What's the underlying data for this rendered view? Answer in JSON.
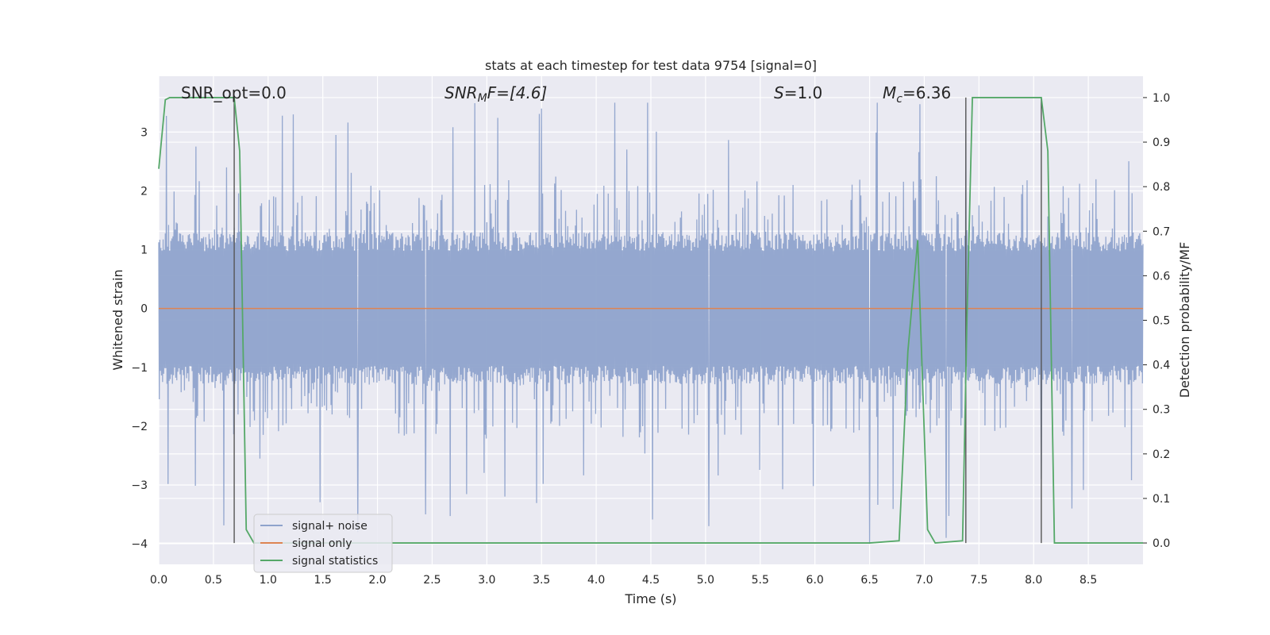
{
  "chart_data": {
    "type": "line",
    "title": "stats at each timestep for test data 9754 [signal=0]",
    "xlabel": "Time (s)",
    "ylabel": "Whitened strain",
    "y2label": "Detection probability/MF",
    "xlim": [
      0.0,
      9.0
    ],
    "ylim": [
      -4.35,
      3.95
    ],
    "y2lim": [
      -0.048,
      1.048
    ],
    "grid": true,
    "legend_position": "lower-left",
    "x_ticks": [
      "0.0",
      "0.5",
      "1.0",
      "1.5",
      "2.0",
      "2.5",
      "3.0",
      "3.5",
      "4.0",
      "4.5",
      "5.0",
      "5.5",
      "6.0",
      "6.5",
      "7.0",
      "7.5",
      "8.0",
      "8.5"
    ],
    "y_ticks": [
      "3",
      "2",
      "1",
      "0",
      "−1",
      "−2",
      "−3",
      "−4"
    ],
    "y2_ticks": [
      "1.0",
      "0.9",
      "0.8",
      "0.7",
      "0.6",
      "0.5",
      "0.4",
      "0.3",
      "0.2",
      "0.1",
      "0.0"
    ],
    "annotations": {
      "snr_opt": "SNR_opt=0.0",
      "snr_mf_main": "SNR",
      "snr_mf_sub": "M",
      "snr_mf_rest": "F=[4.6]",
      "s_italic": "S",
      "s_rest": "=1.0",
      "mc_main": "M",
      "mc_sub": "c",
      "mc_rest": "=6.36"
    },
    "vertical_markers_x": [
      0.69,
      7.38,
      8.07
    ],
    "series": [
      {
        "name": "signal+ noise",
        "color": "#8fa3cc",
        "envelope_approx": {
          "upper": 1.3,
          "lower": -1.3,
          "peak_max": 3.5,
          "trough_min": -4.0
        },
        "notable_spikes": [
          {
            "x": 0.62,
            "y": 2.4
          },
          {
            "x": 1.23,
            "y": 3.3
          },
          {
            "x": 1.82,
            "y": -3.8
          },
          {
            "x": 2.44,
            "y": -3.5
          },
          {
            "x": 3.5,
            "y": 3.4
          },
          {
            "x": 4.47,
            "y": 3.5
          },
          {
            "x": 5.03,
            "y": -3.7
          },
          {
            "x": 6.5,
            "y": -4.0
          },
          {
            "x": 7.2,
            "y": -3.9
          },
          {
            "x": 7.38,
            "y": 3.4
          },
          {
            "x": 8.07,
            "y": -2.9
          },
          {
            "x": 8.35,
            "y": -3.4
          }
        ]
      },
      {
        "name": "signal only",
        "color": "#dd8452",
        "x": [
          0.0,
          9.0
        ],
        "y": [
          0.0,
          0.0
        ]
      },
      {
        "name": "signal statistics",
        "color": "#55a868",
        "axis": "right",
        "x": [
          0.0,
          0.06,
          0.1,
          0.2,
          0.4,
          0.6,
          0.69,
          0.74,
          0.8,
          0.87,
          1.0,
          2.0,
          3.0,
          4.0,
          5.0,
          6.0,
          6.5,
          6.77,
          6.85,
          6.94,
          7.03,
          7.1,
          7.35,
          7.39,
          7.44,
          7.6,
          8.05,
          8.07,
          8.13,
          8.19,
          8.5,
          9.0
        ],
        "y": [
          0.84,
          0.995,
          1.0,
          1.0,
          1.0,
          1.0,
          1.0,
          0.88,
          0.03,
          0.0,
          0.0,
          0.0,
          0.0,
          0.0,
          0.0,
          0.0,
          0.0,
          0.005,
          0.43,
          0.68,
          0.03,
          0.0,
          0.005,
          0.5,
          1.0,
          1.0,
          1.0,
          1.0,
          0.88,
          0.0,
          0.0,
          0.0
        ]
      }
    ]
  }
}
